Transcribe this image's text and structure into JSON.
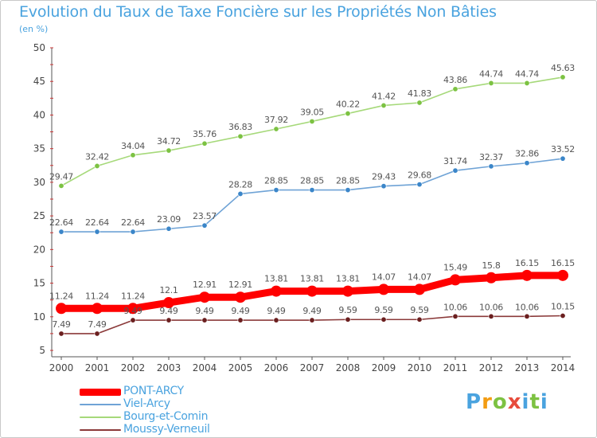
{
  "header": {
    "title": "Evolution du Taux de Taxe Foncière sur les Propriétés Non Bâties",
    "unit": "(en %)"
  },
  "logo": {
    "letters": [
      "P",
      "r",
      "o",
      "x",
      "i",
      "t",
      "i"
    ],
    "colors": [
      "#4aa3df",
      "#f39c12",
      "#7dc242",
      "#e74c3c",
      "#4aa3df",
      "#7dc242",
      "#4aa3df"
    ]
  },
  "chart_data": {
    "type": "line",
    "title": "Evolution du Taux de Taxe Foncière sur les Propriétés Non Bâties",
    "ylabel": "(en %)",
    "xlabel": "",
    "x": [
      "2000",
      "2001",
      "2002",
      "2003",
      "2004",
      "2005",
      "2006",
      "2007",
      "2008",
      "2009",
      "2010",
      "2011",
      "2012",
      "2013",
      "2014"
    ],
    "ylim": [
      5,
      50
    ],
    "yticks": [
      5,
      10,
      15,
      20,
      25,
      30,
      35,
      40,
      45,
      50
    ],
    "grid": false,
    "legend_position": "bottom-left",
    "series": [
      {
        "name": "PONT-ARCY",
        "color": "#ff0000",
        "marker": "#ff0000",
        "emphasis": true,
        "values": [
          11.24,
          11.24,
          11.24,
          12.1,
          12.91,
          12.91,
          13.81,
          13.81,
          13.81,
          14.07,
          14.07,
          15.49,
          15.8,
          16.15,
          16.15
        ],
        "labels": [
          "11.24",
          "11.24",
          "11.24",
          "12.1",
          "12.91",
          "12.91",
          "13.81",
          "13.81",
          "13.81",
          "14.07",
          "14.07",
          "15.49",
          "15.8",
          "16.15",
          "16.15"
        ]
      },
      {
        "name": "Viel-Arcy",
        "color": "#6fa3d6",
        "marker": "#3b86c9",
        "emphasis": false,
        "values": [
          22.64,
          22.64,
          22.64,
          23.09,
          23.57,
          28.28,
          28.85,
          28.85,
          28.85,
          29.43,
          29.68,
          31.74,
          32.37,
          32.86,
          33.52
        ],
        "labels": [
          "22.64",
          "22.64",
          "22.64",
          "23.09",
          "23.57",
          "28.28",
          "28.85",
          "28.85",
          "28.85",
          "29.43",
          "29.68",
          "31.74",
          "32.37",
          "32.86",
          "33.52"
        ]
      },
      {
        "name": "Bourg-et-Comin",
        "color": "#a6d97a",
        "marker": "#7cc242",
        "emphasis": false,
        "values": [
          29.47,
          32.42,
          34.04,
          34.72,
          35.76,
          36.83,
          37.92,
          39.05,
          40.22,
          41.42,
          41.83,
          43.86,
          44.74,
          44.74,
          45.63
        ],
        "labels": [
          "29.47",
          "32.42",
          "34.04",
          "34.72",
          "35.76",
          "36.83",
          "37.92",
          "39.05",
          "40.22",
          "41.42",
          "41.83",
          "43.86",
          "44.74",
          "44.74",
          "45.63"
        ]
      },
      {
        "name": "Moussy-Verneuil",
        "color": "#8b3a3a",
        "marker": "#6b1f1f",
        "emphasis": false,
        "values": [
          7.49,
          7.49,
          9.49,
          9.49,
          9.49,
          9.49,
          9.49,
          9.49,
          9.59,
          9.59,
          9.59,
          10.06,
          10.06,
          10.06,
          10.15
        ],
        "labels": [
          "7.49",
          "7.49",
          "9.49",
          "9.49",
          "9.49",
          "9.49",
          "9.49",
          "9.49",
          "9.59",
          "9.59",
          "9.59",
          "10.06",
          "10.06",
          "10.06",
          "10.15"
        ]
      }
    ]
  }
}
